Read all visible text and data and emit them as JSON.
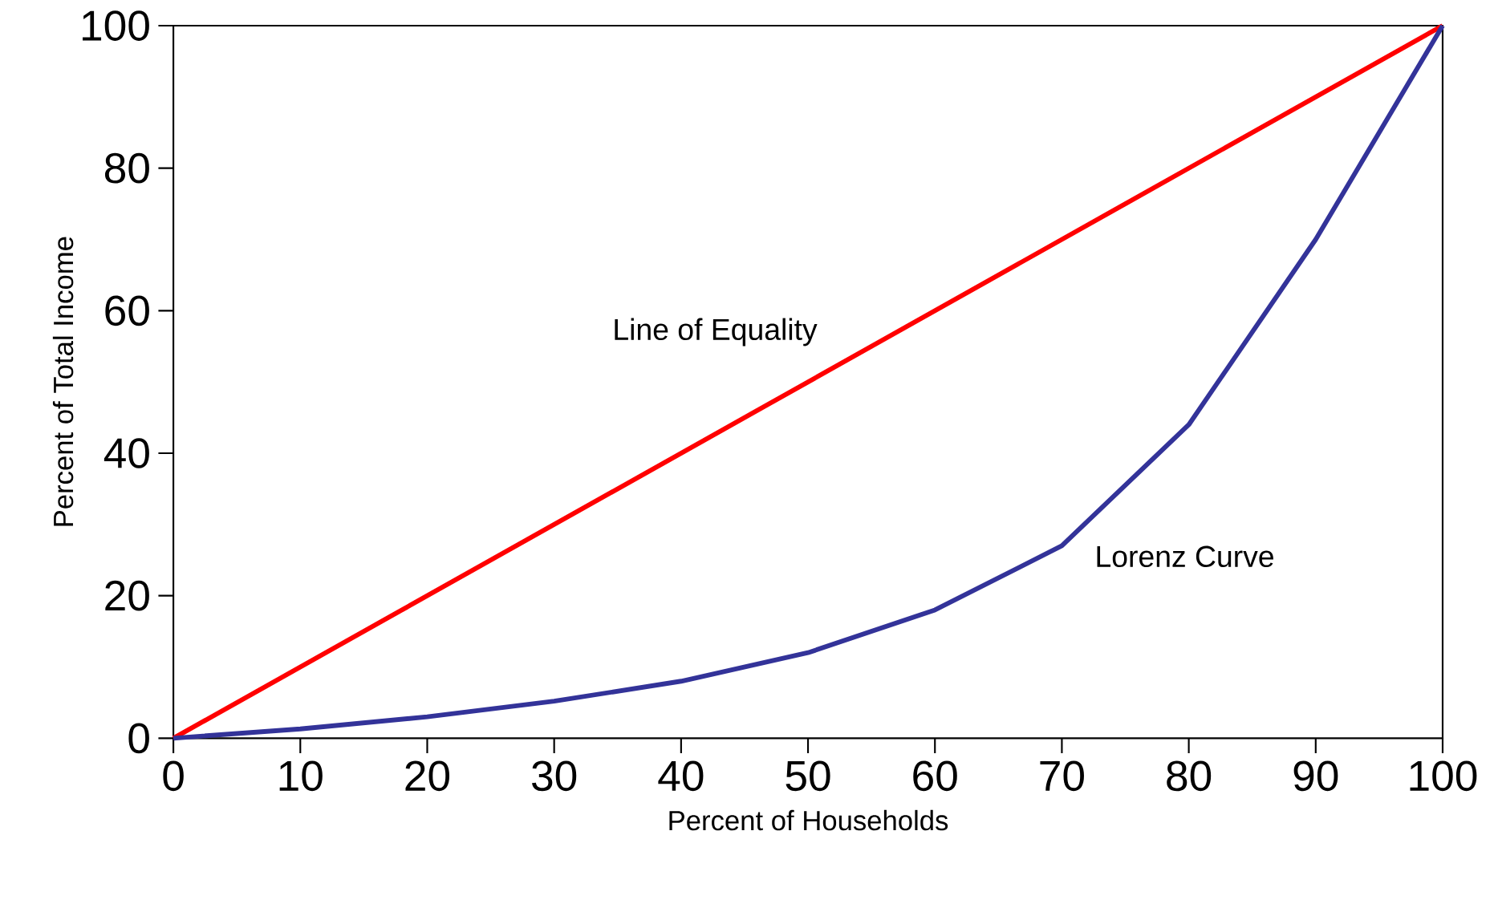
{
  "chart_data": {
    "type": "line",
    "xlabel": "Percent of Households",
    "ylabel": "Percent of Total Income",
    "x": [
      0,
      10,
      20,
      30,
      40,
      50,
      60,
      70,
      80,
      90,
      100
    ],
    "series": [
      {
        "name": "Line of Equality",
        "color": "#ff0000",
        "x": [
          0,
          100
        ],
        "values": [
          0,
          100
        ]
      },
      {
        "name": "Lorenz Curve",
        "color": "#333399",
        "values": [
          0,
          1.3,
          3,
          5.2,
          8,
          12,
          18,
          27,
          44,
          70,
          100
        ]
      }
    ],
    "xlim": [
      0,
      100
    ],
    "ylim": [
      0,
      100
    ],
    "xticks": [
      0,
      10,
      20,
      30,
      40,
      50,
      60,
      70,
      80,
      90,
      100
    ],
    "yticks": [
      0,
      20,
      40,
      60,
      80,
      100
    ],
    "grid": false,
    "legend": false,
    "marker": "none",
    "line_style": "solid"
  }
}
